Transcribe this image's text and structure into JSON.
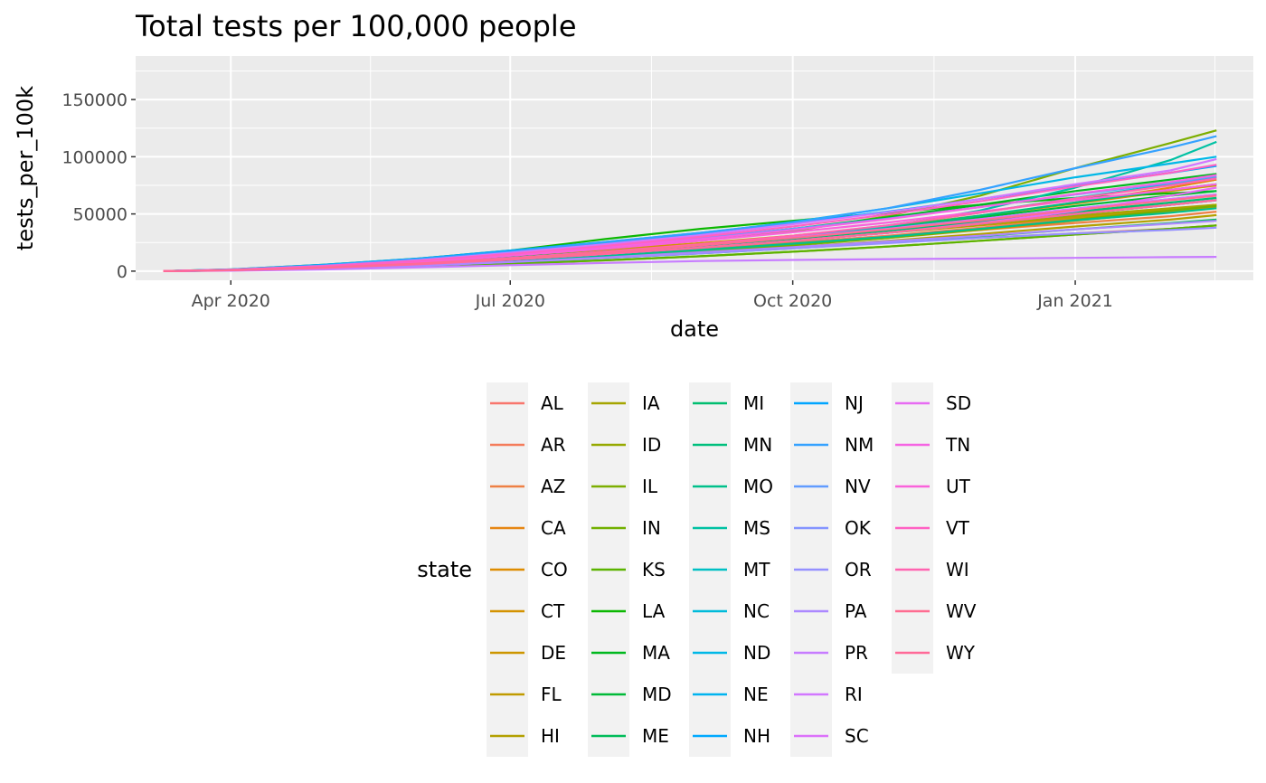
{
  "chart_data": {
    "type": "line",
    "title": "Total tests per 100,000 people",
    "xlabel": "date",
    "ylabel": "tests_per_100k",
    "x_range": [
      "2020-03-01",
      "2021-02-28"
    ],
    "x_ticks": [
      {
        "date": "2020-04-01",
        "label": "Apr 2020"
      },
      {
        "date": "2020-07-01",
        "label": "Jul 2020"
      },
      {
        "date": "2020-10-01",
        "label": "Oct 2020"
      },
      {
        "date": "2021-01-01",
        "label": "Jan 2021"
      }
    ],
    "ylim": [
      -8000,
      188000
    ],
    "y_ticks": [
      0,
      50000,
      100000,
      150000
    ],
    "grid": true,
    "legend": {
      "title": "state",
      "position": "bottom",
      "columns": 5
    },
    "x_dates": [
      "2020-03-10",
      "2020-04-01",
      "2020-05-01",
      "2020-06-01",
      "2020-07-01",
      "2020-08-01",
      "2020-09-01",
      "2020-10-01",
      "2020-11-01",
      "2020-12-01",
      "2021-01-01",
      "2021-02-01",
      "2021-02-16"
    ],
    "series": [
      {
        "name": "AL",
        "color": "#F8766D",
        "values": [
          0,
          1000,
          3000,
          6000,
          9000,
          13000,
          17000,
          21000,
          25000,
          29000,
          33000,
          37000,
          40000
        ]
      },
      {
        "name": "AR",
        "color": "#F47C5B",
        "values": [
          0,
          900,
          3000,
          6200,
          10000,
          14500,
          19500,
          25000,
          31000,
          38000,
          46000,
          54000,
          58000
        ]
      },
      {
        "name": "AZ",
        "color": "#EE8044",
        "values": [
          0,
          800,
          2500,
          5500,
          9500,
          14000,
          19000,
          24500,
          30000,
          36000,
          42000,
          48000,
          52000
        ]
      },
      {
        "name": "CA",
        "color": "#E68613",
        "values": [
          0,
          1200,
          3800,
          7500,
          12000,
          17000,
          23000,
          30000,
          38500,
          48000,
          60000,
          73000,
          80000
        ]
      },
      {
        "name": "CO",
        "color": "#DE8C00",
        "values": [
          0,
          900,
          2800,
          5800,
          9500,
          13500,
          18000,
          23000,
          29000,
          36000,
          44000,
          52000,
          56000
        ]
      },
      {
        "name": "CT",
        "color": "#D49200",
        "values": [
          0,
          1100,
          4000,
          8000,
          13000,
          18500,
          24500,
          31000,
          39000,
          48500,
          59000,
          70000,
          75000
        ]
      },
      {
        "name": "DE",
        "color": "#CD9600",
        "values": [
          0,
          1000,
          3500,
          7500,
          12000,
          17000,
          22500,
          28500,
          35500,
          43000,
          51000,
          58000,
          62000
        ]
      },
      {
        "name": "FL",
        "color": "#C09B00",
        "values": [
          0,
          900,
          3000,
          6500,
          11000,
          16500,
          22000,
          27500,
          33500,
          40000,
          47000,
          54000,
          58000
        ]
      },
      {
        "name": "HI",
        "color": "#B3A000",
        "values": [
          0,
          800,
          2500,
          5000,
          8000,
          12000,
          16000,
          21000,
          26500,
          32500,
          39000,
          45000,
          49000
        ]
      },
      {
        "name": "IA",
        "color": "#A5A500",
        "values": [
          0,
          900,
          3000,
          6500,
          11000,
          16000,
          21500,
          27500,
          34000,
          41000,
          48500,
          55000,
          58000
        ]
      },
      {
        "name": "ID",
        "color": "#96A900",
        "values": [
          0,
          700,
          2000,
          4000,
          6500,
          9500,
          13000,
          17000,
          21500,
          26500,
          32000,
          37000,
          40000
        ]
      },
      {
        "name": "IL",
        "color": "#7CAE00",
        "values": [
          0,
          1100,
          4200,
          8500,
          13500,
          19500,
          26500,
          35000,
          48000,
          66000,
          90000,
          112000,
          123000
        ]
      },
      {
        "name": "IN",
        "color": "#72B000",
        "values": [
          0,
          800,
          2500,
          5000,
          8500,
          12500,
          17000,
          22500,
          29000,
          36500,
          45000,
          53000,
          57000
        ]
      },
      {
        "name": "KS",
        "color": "#5BB300",
        "values": [
          0,
          600,
          1800,
          3800,
          6500,
          9500,
          13000,
          17000,
          21500,
          26500,
          32000,
          37000,
          40000
        ]
      },
      {
        "name": "LA",
        "color": "#0CB702",
        "values": [
          0,
          1500,
          5500,
          11000,
          18000,
          28000,
          37000,
          44000,
          51000,
          58000,
          64000,
          68000,
          70000
        ]
      },
      {
        "name": "MA",
        "color": "#00B81F",
        "values": [
          0,
          1200,
          4500,
          9000,
          14500,
          21000,
          28500,
          37000,
          47000,
          58000,
          70000,
          80000,
          85000
        ]
      },
      {
        "name": "MD",
        "color": "#00BA38",
        "values": [
          0,
          1000,
          3800,
          7500,
          12000,
          17000,
          23000,
          30000,
          38000,
          47000,
          57000,
          66000,
          70000
        ]
      },
      {
        "name": "ME",
        "color": "#00BC59",
        "values": [
          0,
          700,
          2200,
          4800,
          8000,
          11500,
          15500,
          20000,
          25000,
          30500,
          36500,
          42000,
          45000
        ]
      },
      {
        "name": "MI",
        "color": "#00BE70",
        "values": [
          0,
          1000,
          3500,
          7000,
          11500,
          16500,
          22000,
          28000,
          35000,
          43000,
          52000,
          60000,
          64000
        ]
      },
      {
        "name": "MN",
        "color": "#00BF7D",
        "values": [
          0,
          800,
          3000,
          6500,
          11000,
          16500,
          22500,
          29500,
          38000,
          48500,
          60000,
          71000,
          76000
        ]
      },
      {
        "name": "MO",
        "color": "#00C08B",
        "values": [
          0,
          700,
          2500,
          5200,
          9000,
          13500,
          18500,
          24000,
          30000,
          37000,
          44500,
          51000,
          55000
        ]
      },
      {
        "name": "MS",
        "color": "#00C1A3",
        "values": [
          0,
          900,
          3200,
          6800,
          11500,
          17000,
          23000,
          30000,
          39000,
          53000,
          73000,
          97000,
          113000
        ]
      },
      {
        "name": "MT",
        "color": "#00BFC4",
        "values": [
          0,
          900,
          3000,
          6500,
          11000,
          16500,
          23000,
          30500,
          40000,
          51000,
          64000,
          76000,
          82000
        ]
      },
      {
        "name": "NC",
        "color": "#00BBDA",
        "values": [
          0,
          800,
          2800,
          6000,
          10000,
          15000,
          20500,
          26500,
          33500,
          41500,
          50000,
          58000,
          62000
        ]
      },
      {
        "name": "ND",
        "color": "#00B8E7",
        "values": [
          0,
          1200,
          4500,
          9500,
          16000,
          24000,
          33000,
          43000,
          55000,
          68000,
          82000,
          94000,
          100000
        ]
      },
      {
        "name": "NE",
        "color": "#00B4EF",
        "values": [
          0,
          900,
          3200,
          6800,
          11500,
          17000,
          23000,
          29500,
          37000,
          45500,
          54500,
          63000,
          67000
        ]
      },
      {
        "name": "NH",
        "color": "#00A9FF",
        "values": [
          0,
          800,
          2800,
          6000,
          10000,
          15000,
          20500,
          26500,
          33500,
          41500,
          50000,
          58000,
          62000
        ]
      },
      {
        "name": "NJ",
        "color": "#00A5FF",
        "values": [
          0,
          1500,
          5500,
          11000,
          18000,
          25500,
          33500,
          42000,
          52000,
          63000,
          75000,
          86000,
          92000
        ]
      },
      {
        "name": "NM",
        "color": "#35A2FF",
        "values": [
          0,
          1300,
          5000,
          10500,
          17000,
          25500,
          33500,
          42500,
          55000,
          71000,
          90000,
          108000,
          118000
        ]
      },
      {
        "name": "NV",
        "color": "#619CFF",
        "values": [
          0,
          1300,
          4800,
          9500,
          15500,
          22000,
          29000,
          37000,
          46000,
          56000,
          67000,
          77000,
          83000
        ]
      },
      {
        "name": "OK",
        "color": "#8494FF",
        "values": [
          0,
          800,
          2800,
          6000,
          10000,
          15000,
          20500,
          26500,
          33500,
          41500,
          50000,
          58000,
          62000
        ]
      },
      {
        "name": "OR",
        "color": "#9590FF",
        "values": [
          0,
          700,
          2200,
          4800,
          8000,
          11500,
          15500,
          20000,
          24500,
          29000,
          33000,
          36000,
          38000
        ]
      },
      {
        "name": "PA",
        "color": "#AC88FF",
        "values": [
          0,
          700,
          2200,
          4800,
          8000,
          12000,
          16500,
          21000,
          26000,
          31000,
          36500,
          41500,
          44000
        ]
      },
      {
        "name": "PR",
        "color": "#C77CFF",
        "values": [
          0,
          400,
          1500,
          3200,
          5200,
          7200,
          8800,
          9800,
          10500,
          11000,
          11600,
          12200,
          12500
        ]
      },
      {
        "name": "RI",
        "color": "#D277FF",
        "values": [
          0,
          1200,
          4500,
          9500,
          16000,
          23500,
          31500,
          41000,
          51500,
          63000,
          76000,
          88000,
          98000
        ]
      },
      {
        "name": "SC",
        "color": "#DC71FA",
        "values": [
          0,
          900,
          3200,
          6800,
          11500,
          17000,
          23000,
          29500,
          37000,
          45500,
          54500,
          63000,
          67000
        ]
      },
      {
        "name": "SD",
        "color": "#E76BF3",
        "values": [
          0,
          800,
          2800,
          6000,
          10000,
          15000,
          20500,
          26500,
          33500,
          42000,
          52500,
          66000,
          73000
        ]
      },
      {
        "name": "TN",
        "color": "#F564E3",
        "values": [
          0,
          1100,
          4200,
          8800,
          14500,
          21000,
          28000,
          36000,
          45500,
          56000,
          67500,
          78000,
          84000
        ]
      },
      {
        "name": "UT",
        "color": "#FA62DB",
        "values": [
          0,
          1000,
          3800,
          8000,
          13500,
          19500,
          26500,
          34000,
          42500,
          52000,
          62000,
          71000,
          76000
        ]
      },
      {
        "name": "VT",
        "color": "#FF61C3",
        "values": [
          0,
          1100,
          4300,
          9000,
          15000,
          22000,
          30000,
          39000,
          49500,
          61000,
          74000,
          86000,
          93000
        ]
      },
      {
        "name": "WI",
        "color": "#FF64B0",
        "values": [
          0,
          900,
          3200,
          6800,
          11500,
          17000,
          23500,
          31000,
          40000,
          51000,
          63500,
          75000,
          81000
        ]
      },
      {
        "name": "WV",
        "color": "#FF6C91",
        "values": [
          0,
          800,
          3000,
          6500,
          11000,
          16500,
          22500,
          29000,
          36500,
          44500,
          53500,
          62000,
          66000
        ]
      },
      {
        "name": "WY",
        "color": "#FF6A98",
        "values": [
          0,
          800,
          2800,
          6000,
          10000,
          15000,
          20500,
          26500,
          33500,
          41500,
          50000,
          58000,
          62000
        ]
      }
    ]
  }
}
